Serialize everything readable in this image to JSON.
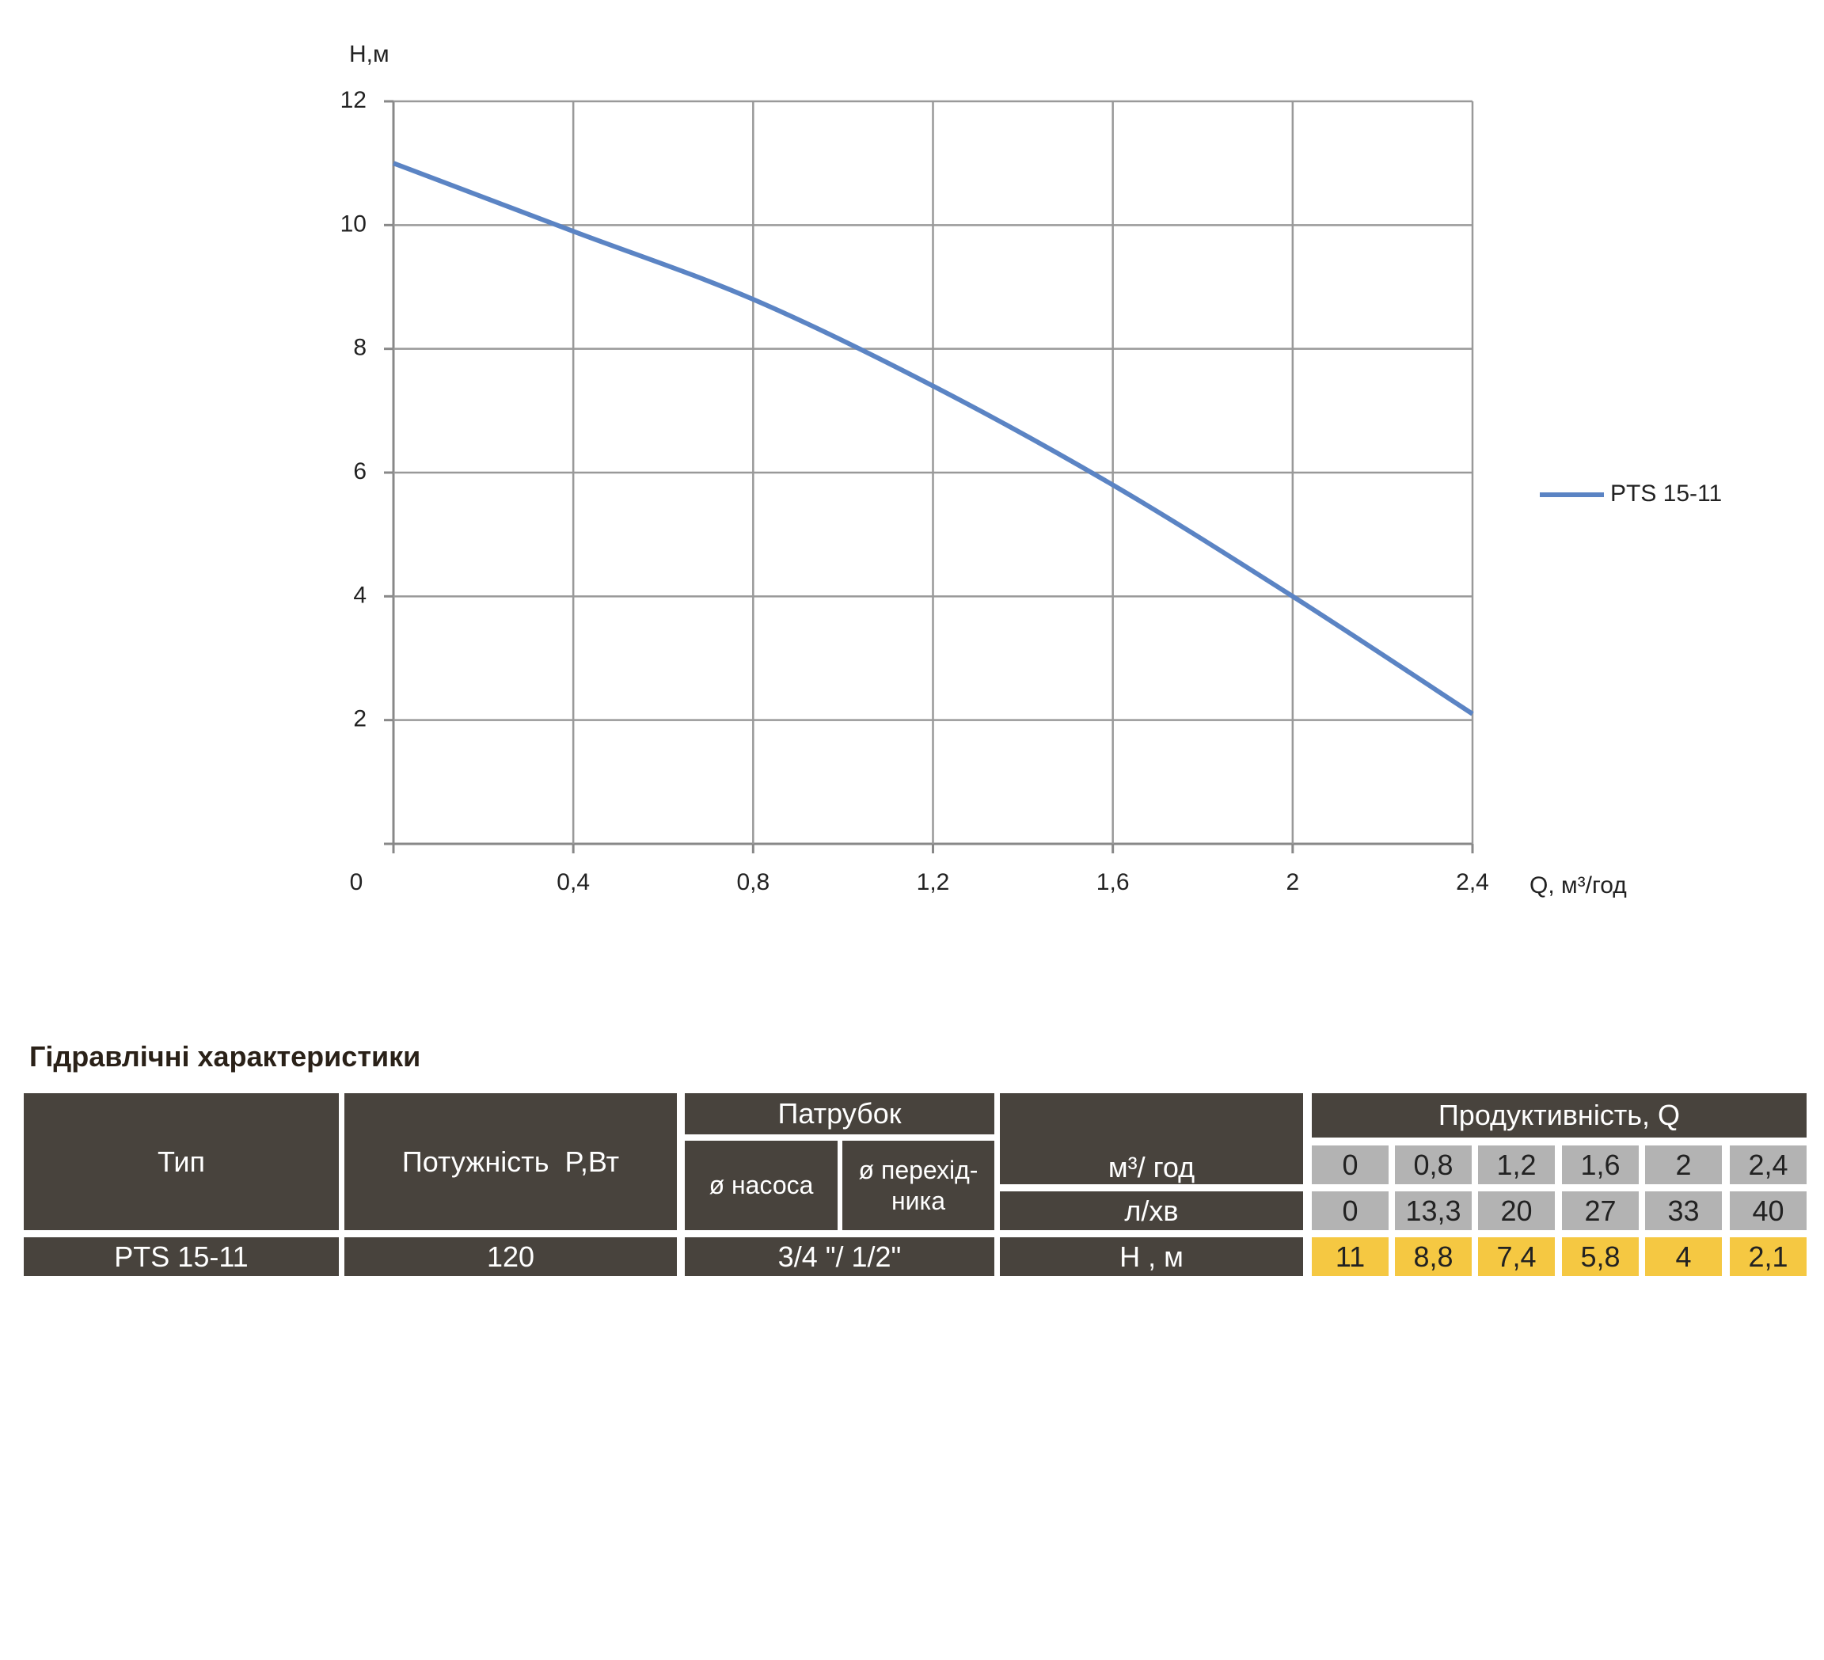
{
  "chart_data": {
    "type": "line",
    "y_label": "Н,м",
    "x_label": "Q, м³/год",
    "x": [
      0,
      0.4,
      0.8,
      1.2,
      1.6,
      2,
      2.4
    ],
    "series": [
      {
        "name": "PTS 15-11",
        "color": "#5b84c4",
        "values": [
          11,
          9.9,
          8.8,
          7.4,
          5.8,
          4,
          2.1
        ]
      }
    ],
    "xlim": [
      0,
      2.4
    ],
    "ylim": [
      0,
      12
    ],
    "xticks": [
      0,
      {
        "value": 0.4,
        "label": "0,4"
      },
      {
        "value": 0.8,
        "label": "0,8"
      },
      {
        "value": 1.2,
        "label": "1,2"
      },
      {
        "value": 1.6,
        "label": "1,6"
      },
      2,
      {
        "value": 2.4,
        "label": "2,4"
      }
    ],
    "yticks": [
      2,
      4,
      6,
      8,
      10,
      12
    ],
    "grid": true,
    "legend": "right"
  },
  "table": {
    "title": "Гідравлічні характеристики",
    "headers": {
      "type": "Тип",
      "power": "Потужність  P,Вт",
      "nozzle": "Патрубок",
      "pump_diameter": "ø насоса",
      "adapter_diameter": [
        "ø перехід-",
        "ника"
      ],
      "flow_m3h": "м³/ год",
      "flow_lmin": "л/хв",
      "performance": "Продуктивність, Q",
      "head": "Н , м"
    },
    "flow_m3h_values": [
      "0",
      "0,8",
      "1,2",
      "1,6",
      "2",
      "2,4"
    ],
    "flow_lmin_values": [
      "0",
      "13,3",
      "20",
      "27",
      "33",
      "40"
    ],
    "head_values": [
      "11",
      "8,8",
      "7,4",
      "5,8",
      "4",
      "2,1"
    ],
    "row": {
      "type": "PTS 15-11",
      "power": "120",
      "nozzle": "3/4 \"/ 1/2\""
    }
  }
}
